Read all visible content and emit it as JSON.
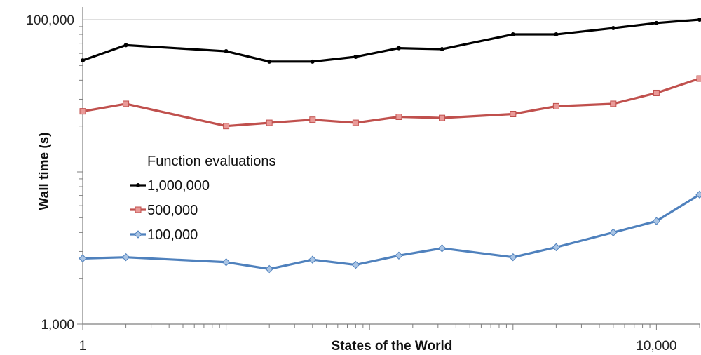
{
  "chart_data": {
    "type": "line",
    "xlabel": "States of the World",
    "ylabel": "Wall time (s)",
    "x_scale": "log",
    "y_scale": "log",
    "xlim": [
      1,
      20000
    ],
    "ylim": [
      1000,
      100000
    ],
    "x_ticks": [
      {
        "value": 1,
        "label": "1"
      },
      {
        "value": 10000,
        "label": "10,000"
      }
    ],
    "y_ticks": [
      {
        "value": 1000,
        "label": "1,000"
      },
      {
        "value": 100000,
        "label": "100,000"
      }
    ],
    "grid": "horizontal major at 100,000",
    "legend": {
      "title": "Function evaluations",
      "placement": "center-left"
    },
    "series": [
      {
        "name": "1,000,000",
        "color": "#000000",
        "marker": "circle",
        "x": [
          1,
          2,
          10,
          20,
          40,
          80,
          160,
          320,
          1000,
          2000,
          5000,
          10000,
          20000
        ],
        "y": [
          54000,
          68000,
          62000,
          53000,
          53000,
          57000,
          65000,
          64000,
          80000,
          80000,
          88000,
          95000,
          100000
        ]
      },
      {
        "name": "500,000",
        "color": "#C0504D",
        "marker": "square",
        "x": [
          1,
          2,
          10,
          20,
          40,
          80,
          160,
          320,
          1000,
          2000,
          5000,
          10000,
          20000
        ],
        "y": [
          25000,
          28000,
          20000,
          21000,
          22000,
          21000,
          23000,
          22600,
          24000,
          27000,
          28000,
          33000,
          41000
        ]
      },
      {
        "name": "100,000",
        "color": "#4F81BD",
        "marker": "diamond",
        "x": [
          1,
          2,
          10,
          20,
          40,
          80,
          160,
          320,
          1000,
          2000,
          5000,
          10000,
          20000
        ],
        "y": [
          2700,
          2750,
          2550,
          2300,
          2650,
          2450,
          2820,
          3150,
          2750,
          3200,
          4000,
          4750,
          7100
        ]
      }
    ]
  }
}
